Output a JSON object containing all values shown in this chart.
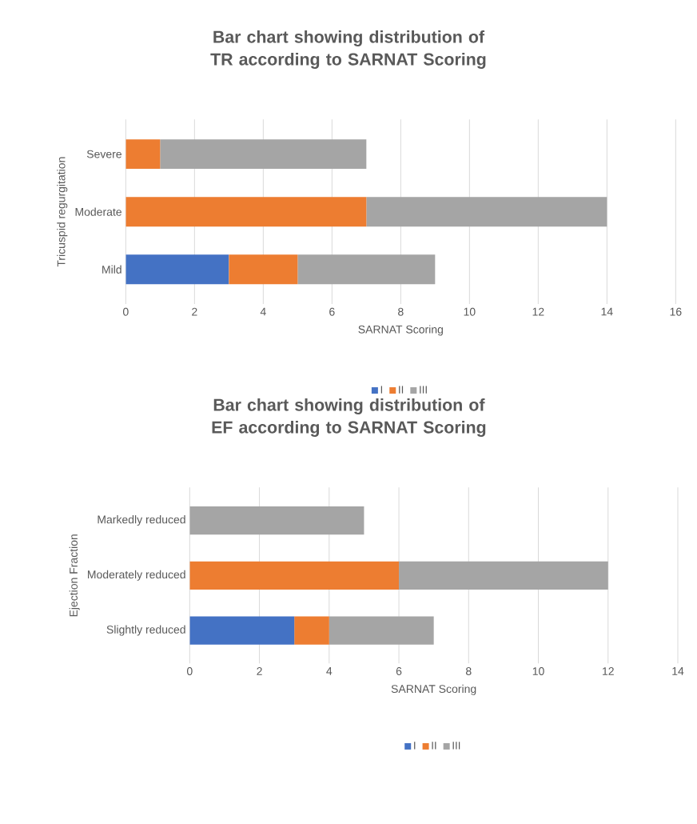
{
  "chart_data": [
    {
      "type": "bar",
      "orientation": "horizontal",
      "stacked": true,
      "title": "Bar chart showing distribution of TR according to SARNAT Scoring",
      "xlabel": "SARNAT Scoring",
      "ylabel": "Tricuspid regurgitation",
      "categories": [
        "Severe",
        "Moderate",
        "Mild"
      ],
      "series": [
        {
          "name": "I",
          "color": "#4472c4",
          "values": [
            0,
            0,
            3
          ]
        },
        {
          "name": "II",
          "color": "#ed7d31",
          "values": [
            1,
            7,
            2
          ]
        },
        {
          "name": "III",
          "color": "#a5a5a5",
          "values": [
            6,
            7,
            4
          ]
        }
      ],
      "xlim": [
        0,
        16
      ],
      "xticks": [
        0,
        2,
        4,
        6,
        8,
        10,
        12,
        14,
        16
      ],
      "grid": "x",
      "legend": "bottom"
    },
    {
      "type": "bar",
      "orientation": "horizontal",
      "stacked": true,
      "title": "Bar chart showing distribution of EF according to SARNAT Scoring",
      "xlabel": "SARNAT Scoring",
      "ylabel": "Ejection Fraction",
      "categories": [
        "Markedly reduced",
        "Moderately reduced",
        "Slightly reduced"
      ],
      "series": [
        {
          "name": "I",
          "color": "#4472c4",
          "values": [
            0,
            0,
            3
          ]
        },
        {
          "name": "II",
          "color": "#ed7d31",
          "values": [
            0,
            6,
            1
          ]
        },
        {
          "name": "III",
          "color": "#a5a5a5",
          "values": [
            5,
            6,
            3
          ]
        }
      ],
      "xlim": [
        0,
        14
      ],
      "xticks": [
        0,
        2,
        4,
        6,
        8,
        10,
        12,
        14
      ],
      "grid": "x",
      "legend": "bottom"
    }
  ]
}
